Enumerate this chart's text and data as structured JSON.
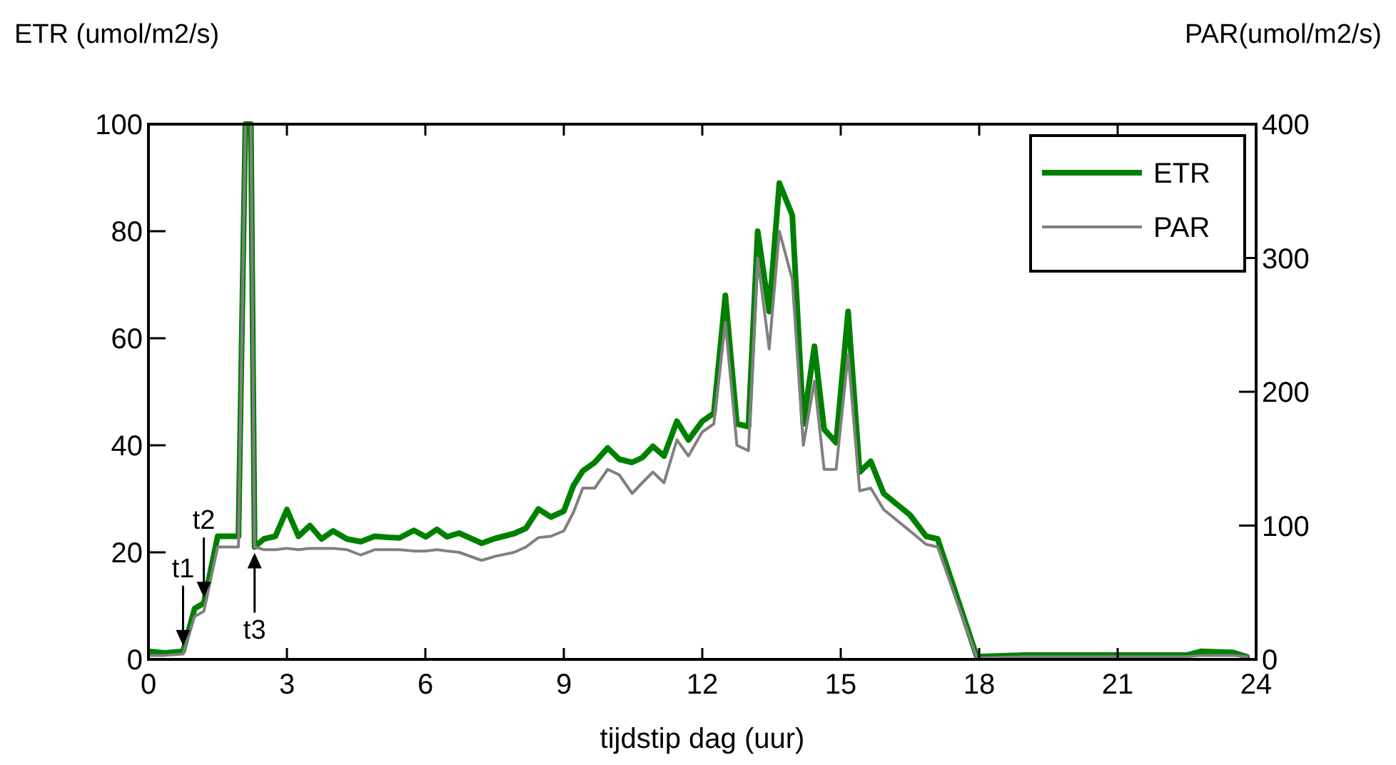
{
  "chart_data": {
    "type": "line",
    "xlabel": "tijdstip dag (uur)",
    "ylabel": "ETR (umol/m2/s)",
    "y2label": "PAR(umol/m2/s)",
    "x": [
      0,
      0.35,
      0.75,
      1.0,
      1.2,
      1.5,
      1.95,
      2.1,
      2.22,
      2.3,
      2.5,
      2.75,
      3.0,
      3.25,
      3.5,
      3.75,
      4.0,
      4.3,
      4.6,
      4.9,
      5.2,
      5.44,
      5.75,
      6.01,
      6.25,
      6.47,
      6.73,
      7.22,
      7.51,
      7.92,
      8.18,
      8.45,
      8.72,
      9.0,
      9.21,
      9.41,
      9.67,
      9.95,
      10.2,
      10.48,
      10.7,
      10.93,
      11.17,
      11.45,
      11.7,
      12.0,
      12.25,
      12.5,
      12.75,
      13.0,
      13.2,
      13.45,
      13.67,
      13.95,
      14.19,
      14.43,
      14.64,
      14.9,
      15.16,
      15.41,
      15.65,
      15.93,
      16.5,
      16.85,
      17.1,
      17.95,
      19,
      22.5,
      22.8,
      23.5,
      23.8
    ],
    "series": [
      {
        "name": "ETR",
        "color": "#008000",
        "values": [
          1.5,
          1.2,
          1.5,
          9.5,
          10.5,
          23,
          23,
          100,
          100,
          21,
          22.5,
          23,
          28,
          23,
          25,
          22.5,
          24,
          22.5,
          22,
          23,
          22.8,
          22.7,
          24.1,
          22.9,
          24.3,
          22.9,
          23.6,
          21.7,
          22.6,
          23.5,
          24.5,
          28.1,
          26.6,
          27.7,
          32.5,
          35.2,
          36.8,
          39.5,
          37.4,
          36.8,
          37.7,
          39.8,
          38,
          44.5,
          41,
          44.5,
          46,
          68,
          44,
          43.5,
          80,
          65,
          89,
          83,
          44,
          58.5,
          43,
          40.5,
          65,
          35,
          37,
          31,
          27,
          23,
          22.5,
          0.5,
          0.8,
          0.8,
          1.5,
          1.3,
          0.5
        ]
      },
      {
        "name": "PAR",
        "color": "#808080",
        "axis": "y2",
        "values": [
          3,
          3,
          4,
          32,
          36,
          84,
          84,
          400,
          400,
          84,
          82,
          82,
          83,
          82,
          83,
          83,
          83,
          82,
          78,
          82,
          82,
          82,
          81,
          81,
          82,
          81,
          80,
          74,
          77,
          80,
          84,
          91,
          92,
          96,
          110,
          128,
          128,
          142,
          138,
          124,
          132,
          140,
          132,
          164,
          152,
          170,
          176,
          252,
          160,
          156,
          300,
          232,
          320,
          284,
          160,
          208,
          142,
          142,
          228,
          126,
          128,
          112,
          96,
          86,
          84,
          1,
          2,
          2,
          3,
          3,
          2
        ]
      }
    ],
    "xlim": [
      0,
      24
    ],
    "xticks": [
      0,
      3,
      6,
      9,
      12,
      15,
      18,
      21,
      24
    ],
    "ylim": [
      0,
      100
    ],
    "yticks": [
      0,
      20,
      40,
      60,
      80,
      100
    ],
    "y2lim": [
      0,
      400
    ],
    "y2ticks": [
      0,
      100,
      200,
      300,
      400
    ],
    "annotations": [
      {
        "text": "t1",
        "x": 0.75,
        "y": 1.5
      },
      {
        "text": "t2",
        "x": 1.2,
        "y": 10.5
      },
      {
        "text": "t3",
        "x": 2.3,
        "y": 21
      }
    ],
    "legend": "top right",
    "grid": false
  }
}
